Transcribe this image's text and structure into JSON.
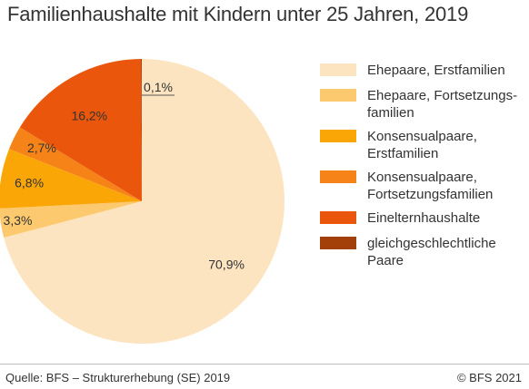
{
  "title": "Familienhaushalte mit Kindern unter 25 Jahren, 2019",
  "source": "Quelle: BFS – Strukturerhebung (SE) 2019",
  "copyright": "© BFS 2021",
  "chart_data": {
    "type": "pie",
    "title": "Familienhaushalte mit Kindern unter 25 Jahren, 2019",
    "slices": [
      {
        "label": "Ehepaare, Erstfamilien",
        "legend_lines": [
          "Ehepaare, Erstfamilien"
        ],
        "value": 70.9,
        "value_label": "70,9%",
        "color": "#fde4c0"
      },
      {
        "label": "Ehepaare, Fortsetzungsfamilien",
        "legend_lines": [
          "Ehepaare, Fortsetzungs-",
          "familien"
        ],
        "value": 3.3,
        "value_label": "3,3%",
        "color": "#fdc96f"
      },
      {
        "label": "Konsensualpaare, Erstfamilien",
        "legend_lines": [
          "Konsensualpaare,",
          "Erstfamilien"
        ],
        "value": 6.8,
        "value_label": "6,8%",
        "color": "#fba607"
      },
      {
        "label": "Konsensualpaare, Fortsetzungsfamilien",
        "legend_lines": [
          "Konsensualpaare,",
          "Fortsetzungsfamilien"
        ],
        "value": 2.7,
        "value_label": "2,7%",
        "color": "#f58318"
      },
      {
        "label": "Einelternhaushalte",
        "legend_lines": [
          "Einelternhaushalte"
        ],
        "value": 16.2,
        "value_label": "16,2%",
        "color": "#e9560c"
      },
      {
        "label": "gleichgeschlechtliche Paare",
        "legend_lines": [
          "gleichgeschlechtliche",
          "Paare"
        ],
        "value": 0.1,
        "value_label": "0,1%",
        "color": "#a3400a"
      }
    ],
    "start": "12 o'clock",
    "direction": "clockwise",
    "legend_position": "right"
  }
}
